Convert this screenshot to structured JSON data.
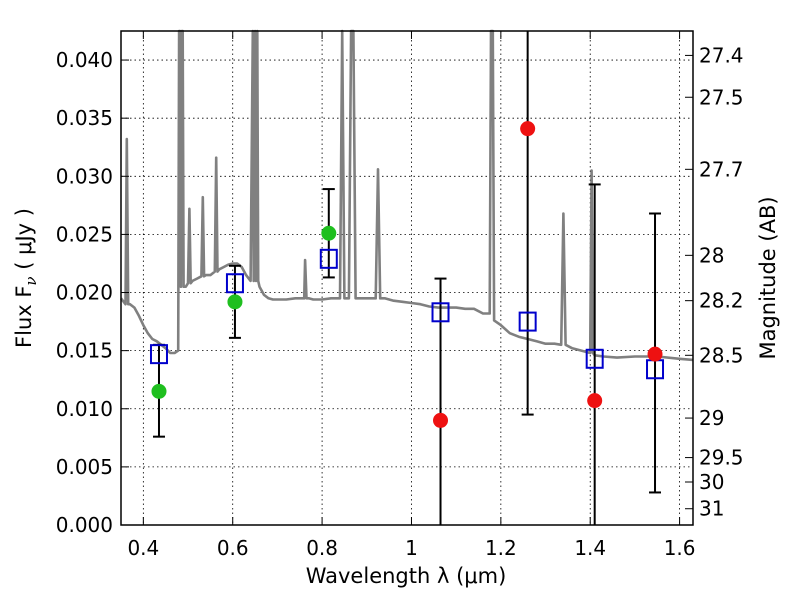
{
  "chart_data": {
    "type": "scatter",
    "xlabel": "Wavelength  λ (μm)",
    "ylabel": "Flux  F",
    "ylabel_sub": "ν",
    "ylabel_unit": " ( μJy )",
    "y2label": "Magnitude (AB)",
    "xlim": [
      0.35,
      1.63
    ],
    "ylim": [
      0.0,
      0.0425
    ],
    "grid": true,
    "x_ticks": [
      0.4,
      0.6,
      0.8,
      1.0,
      1.2,
      1.4,
      1.6
    ],
    "x_tick_labels": [
      "0.4",
      "0.6",
      "0.8",
      "1",
      "1.2",
      "1.4",
      "1.6"
    ],
    "y_ticks": [
      0.0,
      0.005,
      0.01,
      0.015,
      0.02,
      0.025,
      0.03,
      0.035,
      0.04
    ],
    "y_tick_labels": [
      "0.000",
      "0.005",
      "0.010",
      "0.015",
      "0.020",
      "0.025",
      "0.030",
      "0.035",
      "0.040"
    ],
    "y2_ticks": [
      {
        "label": "27.4",
        "flux": 0.0404
      },
      {
        "label": "27.5",
        "flux": 0.0368
      },
      {
        "label": "27.7",
        "flux": 0.0306
      },
      {
        "label": "28",
        "flux": 0.0232
      },
      {
        "label": "28.2",
        "flux": 0.0193
      },
      {
        "label": "28.5",
        "flux": 0.0146
      },
      {
        "label": "29",
        "flux": 0.0092
      },
      {
        "label": "29.5",
        "flux": 0.0058
      },
      {
        "label": "30",
        "flux": 0.0037
      },
      {
        "label": "31",
        "flux": 0.0014
      }
    ],
    "series": [
      {
        "kind": "model_spectrum",
        "color": "#808080",
        "x": [
          0.35,
          0.36,
          0.363,
          0.366,
          0.37,
          0.38,
          0.39,
          0.4,
          0.41,
          0.42,
          0.43,
          0.44,
          0.45,
          0.46,
          0.47,
          0.478,
          0.48,
          0.482,
          0.484,
          0.486,
          0.488,
          0.49,
          0.495,
          0.5,
          0.503,
          0.506,
          0.51,
          0.52,
          0.53,
          0.533,
          0.536,
          0.54,
          0.55,
          0.56,
          0.563,
          0.566,
          0.57,
          0.58,
          0.59,
          0.6,
          0.61,
          0.62,
          0.63,
          0.64,
          0.645,
          0.647,
          0.65,
          0.652,
          0.655,
          0.657,
          0.66,
          0.67,
          0.68,
          0.69,
          0.7,
          0.72,
          0.74,
          0.76,
          0.762,
          0.765,
          0.77,
          0.78,
          0.8,
          0.82,
          0.84,
          0.845,
          0.85,
          0.86,
          0.865,
          0.87,
          0.875,
          0.88,
          0.9,
          0.92,
          0.925,
          0.93,
          0.94,
          0.96,
          0.98,
          1.0,
          1.02,
          1.04,
          1.06,
          1.08,
          1.1,
          1.12,
          1.14,
          1.16,
          1.175,
          1.178,
          1.182,
          1.185,
          1.2,
          1.22,
          1.24,
          1.26,
          1.28,
          1.3,
          1.32,
          1.335,
          1.34,
          1.345,
          1.36,
          1.38,
          1.4,
          1.403,
          1.406,
          1.41,
          1.43,
          1.46,
          1.5,
          1.55,
          1.6,
          1.63
        ],
        "y": [
          0.0195,
          0.019,
          0.0332,
          0.019,
          0.019,
          0.0187,
          0.018,
          0.0172,
          0.0165,
          0.016,
          0.0158,
          0.0155,
          0.0152,
          0.0148,
          0.0148,
          0.015,
          0.0425,
          0.0425,
          0.0205,
          0.0425,
          0.0425,
          0.0205,
          0.0205,
          0.0208,
          0.0272,
          0.0208,
          0.021,
          0.0212,
          0.0214,
          0.0282,
          0.0214,
          0.0215,
          0.0215,
          0.0218,
          0.0316,
          0.0218,
          0.022,
          0.0222,
          0.0224,
          0.0225,
          0.0225,
          0.0222,
          0.0215,
          0.021,
          0.0425,
          0.021,
          0.0425,
          0.021,
          0.0425,
          0.021,
          0.0205,
          0.0198,
          0.0195,
          0.0194,
          0.0194,
          0.0194,
          0.0195,
          0.0195,
          0.0228,
          0.0195,
          0.0195,
          0.0194,
          0.0194,
          0.0195,
          0.0195,
          0.0425,
          0.0195,
          0.0195,
          0.0425,
          0.0425,
          0.0195,
          0.0195,
          0.0195,
          0.0195,
          0.0306,
          0.0195,
          0.0195,
          0.0193,
          0.0192,
          0.0191,
          0.019,
          0.0188,
          0.0187,
          0.0187,
          0.0187,
          0.0186,
          0.0186,
          0.0182,
          0.0182,
          0.0425,
          0.0425,
          0.0176,
          0.0172,
          0.0165,
          0.0162,
          0.016,
          0.0158,
          0.0156,
          0.0156,
          0.0155,
          0.0268,
          0.0155,
          0.0152,
          0.015,
          0.0148,
          0.0305,
          0.0148,
          0.0146,
          0.0145,
          0.0144,
          0.0145,
          0.0145,
          0.0143,
          0.0142
        ]
      },
      {
        "kind": "model_points",
        "marker": "open-square",
        "color": "#0000cc",
        "x": [
          0.435,
          0.605,
          0.815,
          1.065,
          1.26,
          1.41,
          1.545
        ],
        "y": [
          0.0147,
          0.0208,
          0.0229,
          0.0183,
          0.0175,
          0.0143,
          0.0134
        ]
      },
      {
        "kind": "observed_detected",
        "marker": "filled-circle",
        "color": "#1fbf1f",
        "x": [
          0.435,
          0.605,
          0.815
        ],
        "y": [
          0.0115,
          0.0192,
          0.0251
        ],
        "err_low": [
          0.0076,
          0.0161,
          0.0213
        ],
        "err_high": [
          0.0155,
          0.0223,
          0.0289
        ]
      },
      {
        "kind": "observed_upper",
        "marker": "filled-circle",
        "color": "#ee1111",
        "x": [
          1.065,
          1.26,
          1.41,
          1.545
        ],
        "y": [
          0.009,
          0.0341,
          0.0107,
          0.0147
        ],
        "err_low": [
          0.0,
          0.0095,
          0.0,
          0.0028
        ],
        "err_high": [
          0.0212,
          0.0425,
          0.0293,
          0.0268
        ]
      }
    ]
  }
}
